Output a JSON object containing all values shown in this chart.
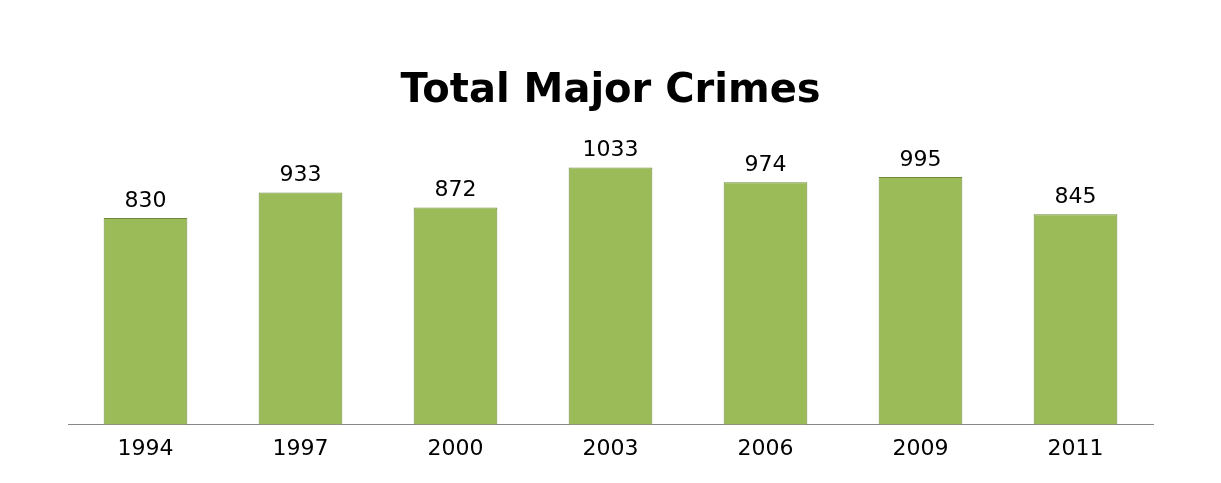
{
  "chart_data": {
    "type": "bar",
    "title": "Total Major Crimes",
    "categories": [
      "1994",
      "1997",
      "2000",
      "2003",
      "2006",
      "2009",
      "2011"
    ],
    "values": [
      830,
      933,
      872,
      1033,
      974,
      995,
      845
    ],
    "color": "#9bbb59",
    "data_labels": true,
    "grid": false,
    "legend": false
  }
}
